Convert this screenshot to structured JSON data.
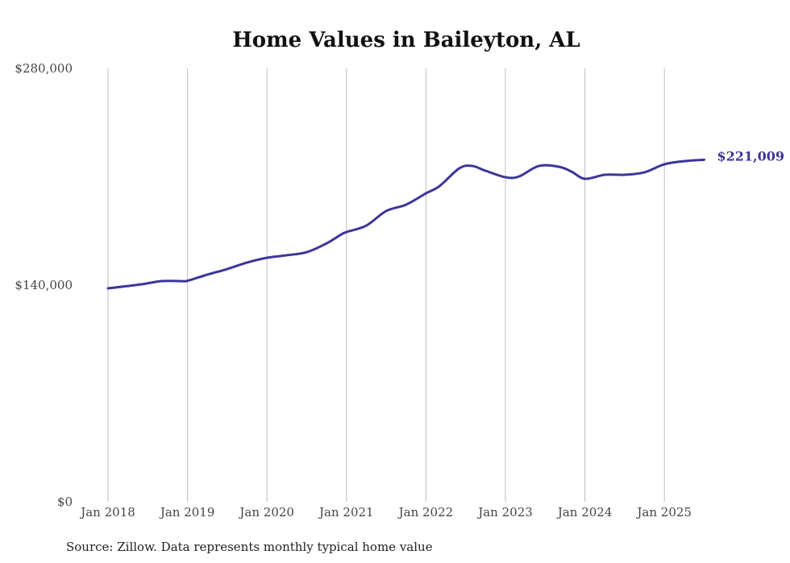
{
  "chart_data": {
    "type": "line",
    "title": "Home Values in Baileyton, AL",
    "xlabel": "",
    "ylabel": "",
    "ylim": [
      0,
      280000
    ],
    "yticks": [
      0,
      140000,
      280000
    ],
    "ytick_labels": [
      "$0",
      "$140,000",
      "$280,000"
    ],
    "xticks": [
      2018,
      2019,
      2020,
      2021,
      2022,
      2023,
      2024,
      2025
    ],
    "xtick_labels": [
      "Jan 2018",
      "Jan 2019",
      "Jan 2020",
      "Jan 2021",
      "Jan 2022",
      "Jan 2023",
      "Jan 2024",
      "Jan 2025"
    ],
    "grid": "vertical",
    "series": [
      {
        "name": "Typical home value",
        "color": "#3d3599",
        "x": [
          2018.0,
          2018.42,
          2018.67,
          2018.92,
          2019.0,
          2019.25,
          2019.5,
          2019.75,
          2020.0,
          2020.25,
          2020.5,
          2020.75,
          2020.92,
          2021.0,
          2021.25,
          2021.5,
          2021.75,
          2022.0,
          2022.17,
          2022.42,
          2022.58,
          2022.75,
          2023.0,
          2023.17,
          2023.42,
          2023.67,
          2023.83,
          2024.0,
          2024.25,
          2024.5,
          2024.75,
          2025.0,
          2025.25,
          2025.5
        ],
        "values": [
          137900,
          140500,
          142600,
          142600,
          142800,
          146800,
          150400,
          154600,
          157700,
          159300,
          161300,
          167000,
          172300,
          174300,
          178500,
          187900,
          192000,
          199300,
          204000,
          215500,
          217000,
          213900,
          209700,
          210200,
          217000,
          216500,
          213400,
          208700,
          211300,
          211300,
          212900,
          218100,
          220100,
          221009
        ]
      }
    ],
    "end_label": "$221,009",
    "source": "Source: Zillow. Data represents monthly typical home value"
  }
}
